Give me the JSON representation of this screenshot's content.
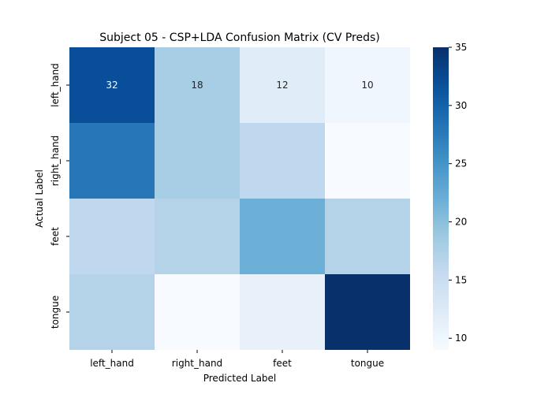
{
  "chart_data": {
    "type": "heatmap",
    "title": "Subject 05 - CSP+LDA Confusion Matrix (CV Preds)",
    "xlabel": "Predicted Label",
    "ylabel": "Actual Label",
    "x_categories": [
      "left_hand",
      "right_hand",
      "feet",
      "tongue"
    ],
    "y_categories": [
      "left_hand",
      "right_hand",
      "feet",
      "tongue"
    ],
    "values": [
      [
        32,
        18,
        12,
        10
      ],
      [
        28,
        18,
        16,
        9
      ],
      [
        16,
        17,
        22,
        17
      ],
      [
        17,
        9,
        11,
        35
      ]
    ],
    "annotated_row": 0,
    "colormap": "Blues",
    "vmin": 9,
    "vmax": 35,
    "colorbar_ticks": [
      10,
      15,
      20,
      25,
      30,
      35
    ]
  }
}
